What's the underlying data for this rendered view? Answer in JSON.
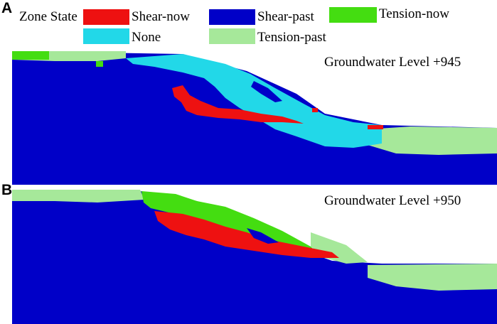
{
  "legend": {
    "title": "Zone State",
    "items": [
      {
        "label": "Shear-now",
        "color": "#ee1111"
      },
      {
        "label": "Shear-past",
        "color": "#0000c8"
      },
      {
        "label": "Tension-now",
        "color": "#44dd11"
      },
      {
        "label": "None",
        "color": "#22d8e8"
      },
      {
        "label": "Tension-past",
        "color": "#a6e89a"
      }
    ]
  },
  "panels": [
    {
      "letter": "A",
      "groundwater_label": "Groundwater Level +945"
    },
    {
      "letter": "B",
      "groundwater_label": "Groundwater Level +950"
    }
  ],
  "colors": {
    "shear_now": "#ee1111",
    "shear_past": "#0000c8",
    "tension_now": "#44dd11",
    "none": "#22d8e8",
    "tension_past": "#a6e89a"
  }
}
